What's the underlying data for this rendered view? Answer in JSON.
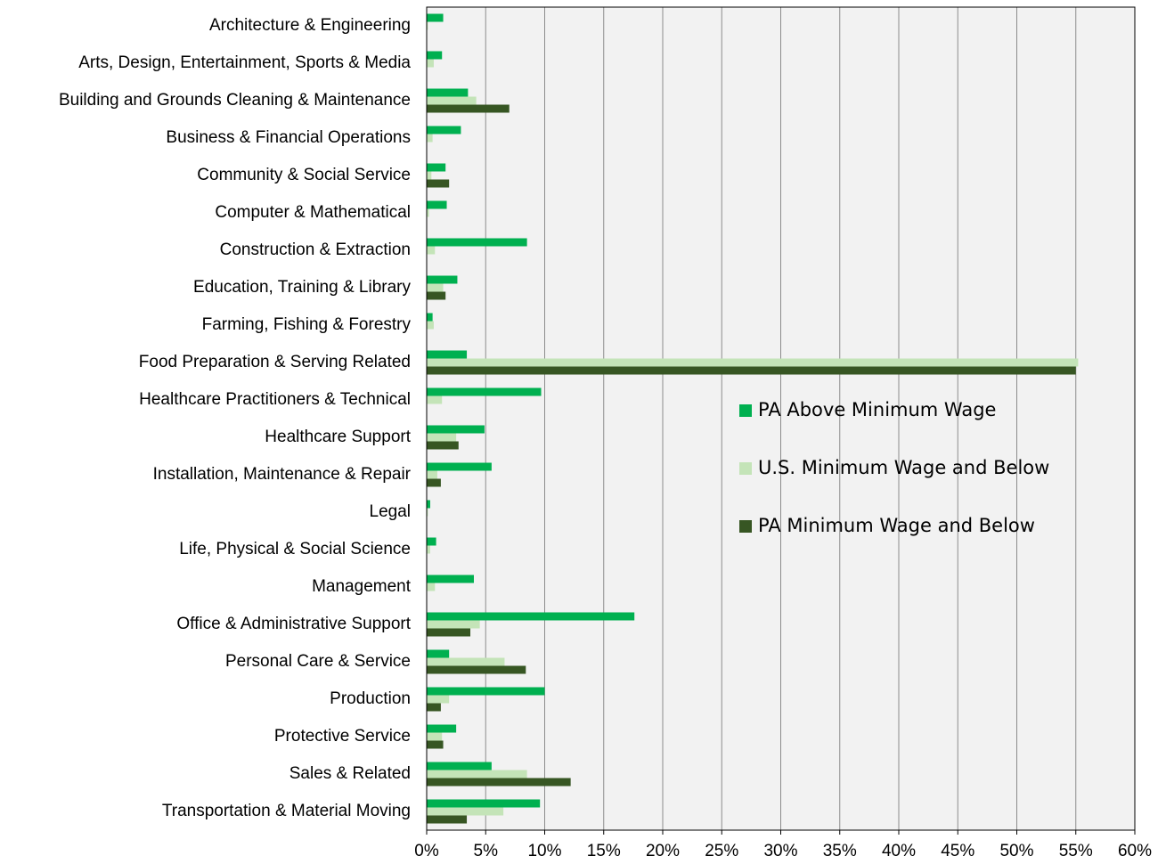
{
  "chart_data": {
    "type": "hbar",
    "categories": [
      "Architecture & Engineering",
      "Arts, Design, Entertainment, Sports & Media",
      "Building and Grounds Cleaning & Maintenance",
      "Business & Financial Operations",
      "Community & Social Service",
      "Computer & Mathematical",
      "Construction & Extraction",
      "Education, Training & Library",
      "Farming, Fishing & Forestry",
      "Food Preparation & Serving Related",
      "Healthcare Practitioners & Technical",
      "Healthcare Support",
      "Installation, Maintenance & Repair",
      "Legal",
      "Life, Physical & Social Science",
      "Management",
      "Office & Administrative Support",
      "Personal Care & Service",
      "Production",
      "Protective Service",
      "Sales & Related",
      "Transportation & Material Moving"
    ],
    "series": [
      {
        "name": "PA Above Minimum Wage",
        "color": "#00b050",
        "values": [
          1.4,
          1.3,
          3.5,
          2.9,
          1.6,
          1.7,
          8.5,
          2.6,
          0.5,
          3.4,
          9.7,
          4.9,
          5.5,
          0.3,
          0.8,
          4.0,
          17.6,
          1.9,
          10.0,
          2.5,
          5.5,
          9.6
        ]
      },
      {
        "name": "U.S. Minimum Wage and Below",
        "color": "#c4e4b8",
        "values": [
          0.1,
          0.6,
          4.2,
          0.5,
          0.4,
          0.2,
          0.7,
          1.4,
          0.6,
          55.2,
          1.3,
          2.5,
          0.9,
          0.1,
          0.3,
          0.7,
          4.5,
          6.6,
          1.9,
          1.3,
          8.5,
          6.5
        ]
      },
      {
        "name": "PA Minimum Wage and Below",
        "color": "#375623",
        "values": [
          0,
          0,
          7.0,
          0,
          1.9,
          0,
          0,
          1.6,
          0,
          55.0,
          0,
          2.7,
          1.2,
          0,
          0,
          0,
          3.7,
          8.4,
          1.2,
          1.4,
          12.2,
          3.4
        ]
      }
    ],
    "xlim": [
      0,
      60
    ],
    "xticks": [
      {
        "value": 0,
        "label": "0%"
      },
      {
        "value": 5,
        "label": "5%"
      },
      {
        "value": 10,
        "label": "10%"
      },
      {
        "value": 15,
        "label": "15%"
      },
      {
        "value": 20,
        "label": "20%"
      },
      {
        "value": 25,
        "label": "25%"
      },
      {
        "value": 30,
        "label": "30%"
      },
      {
        "value": 35,
        "label": "35%"
      },
      {
        "value": 40,
        "label": "40%"
      },
      {
        "value": 45,
        "label": "45%"
      },
      {
        "value": 50,
        "label": "50%"
      },
      {
        "value": 55,
        "label": "55%"
      },
      {
        "value": 60,
        "label": "60%"
      }
    ],
    "grid": true,
    "legend": "right"
  }
}
